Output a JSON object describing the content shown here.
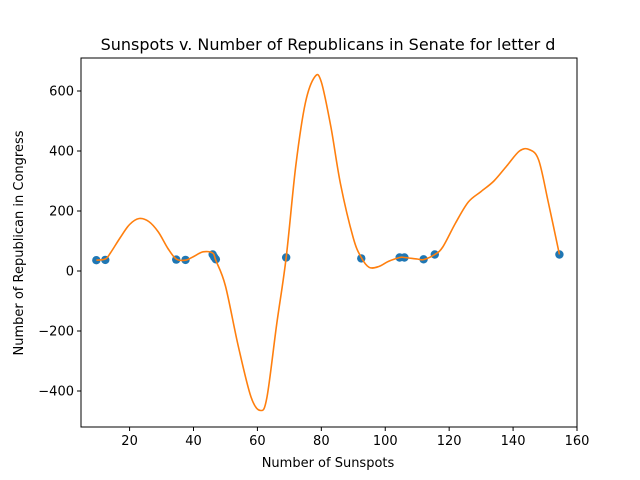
{
  "chart_data": {
    "type": "scatter",
    "title": "Sunspots v. Number of Republicans in Senate for letter d",
    "xlabel": "Number of Sunspots",
    "ylabel": "Number of Republican in Congress",
    "xlim": [
      4.8,
      160
    ],
    "ylim": [
      -520,
      710
    ],
    "xticks": [
      20,
      40,
      60,
      80,
      100,
      120,
      140,
      160
    ],
    "yticks": [
      -400,
      -200,
      0,
      200,
      400,
      600
    ],
    "ytick_labels": [
      "−400",
      "−200",
      "0",
      "200",
      "400",
      "600"
    ],
    "grid": false,
    "colors": {
      "points": "#1f77b4",
      "curve": "#ff7f0e"
    },
    "points": [
      [
        9.6,
        36
      ],
      [
        12.4,
        37
      ],
      [
        34.6,
        38
      ],
      [
        37.5,
        37
      ],
      [
        46.0,
        55
      ],
      [
        46.5,
        46
      ],
      [
        47.0,
        39
      ],
      [
        69.0,
        45
      ],
      [
        92.5,
        42
      ],
      [
        104.5,
        45
      ],
      [
        106.0,
        45
      ],
      [
        112.0,
        39
      ],
      [
        115.5,
        55
      ],
      [
        154.5,
        55
      ]
    ],
    "curve": [
      [
        9.6,
        36
      ],
      [
        12.4,
        40
      ],
      [
        14,
        60
      ],
      [
        17,
        110
      ],
      [
        20,
        155
      ],
      [
        23,
        175
      ],
      [
        26,
        165
      ],
      [
        29,
        130
      ],
      [
        32,
        75
      ],
      [
        34.6,
        40
      ],
      [
        37.5,
        36
      ],
      [
        40,
        48
      ],
      [
        43,
        64
      ],
      [
        46,
        60
      ],
      [
        47,
        35
      ],
      [
        50,
        -50
      ],
      [
        54,
        -250
      ],
      [
        58,
        -420
      ],
      [
        61,
        -465
      ],
      [
        63,
        -420
      ],
      [
        66,
        -180
      ],
      [
        69,
        45
      ],
      [
        72,
        350
      ],
      [
        75,
        560
      ],
      [
        78,
        648
      ],
      [
        80,
        630
      ],
      [
        83,
        480
      ],
      [
        86,
        290
      ],
      [
        90,
        110
      ],
      [
        92.5,
        45
      ],
      [
        95,
        12
      ],
      [
        98,
        15
      ],
      [
        101,
        32
      ],
      [
        104.5,
        45
      ],
      [
        106,
        45
      ],
      [
        110,
        40
      ],
      [
        112,
        38
      ],
      [
        115.5,
        55
      ],
      [
        118,
        80
      ],
      [
        122,
        160
      ],
      [
        126,
        230
      ],
      [
        130,
        265
      ],
      [
        134,
        300
      ],
      [
        138,
        350
      ],
      [
        142,
        400
      ],
      [
        145,
        405
      ],
      [
        148,
        370
      ],
      [
        151,
        230
      ],
      [
        154.5,
        55
      ]
    ]
  }
}
